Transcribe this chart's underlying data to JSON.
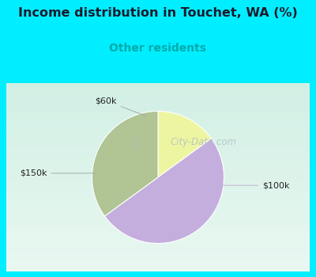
{
  "title": "Income distribution in Touchet, WA (%)",
  "subtitle": "Other residents",
  "slices": [
    {
      "label": "$60k",
      "value": 15.0,
      "color": "#eef5a0"
    },
    {
      "label": "$100k",
      "value": 50.0,
      "color": "#c4aedd"
    },
    {
      "label": "$150k",
      "value": 35.0,
      "color": "#b0c494"
    }
  ],
  "bg_color": "#00eeff",
  "chart_bg_top": "#d8f0e8",
  "chart_bg_bottom": "#e8f8f0",
  "title_color": "#1a1a2e",
  "subtitle_color": "#00aaaa",
  "label_color": "#222222",
  "start_angle": 90,
  "fig_width": 4.0,
  "fig_height": 3.5,
  "dpi": 100,
  "watermark": "City-Data.com",
  "watermark_color": "#b0c0c8",
  "arrow_color": "#a0b0a0"
}
